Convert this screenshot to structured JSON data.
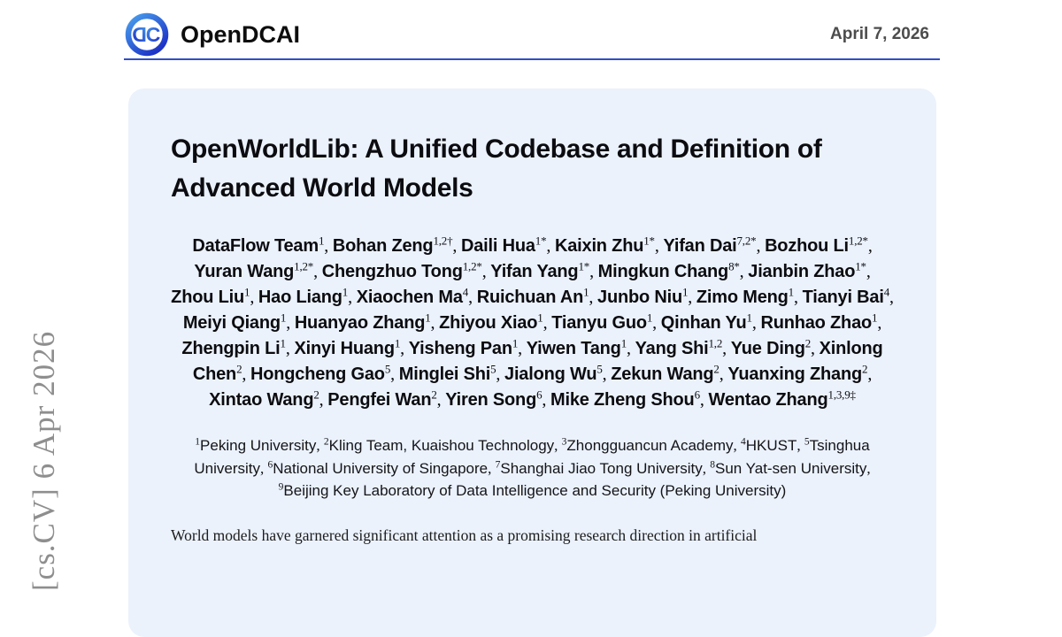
{
  "theme": {
    "accent": "#2f4ec5",
    "card_bg": "#ebf2fc",
    "logo_light": "#4aa0ec",
    "logo_dark": "#1b2ec6",
    "watermark_gray": "#8e8e8e",
    "date_gray": "#4c4c4c",
    "text_dark": "#0d0d10"
  },
  "watermark": {
    "text": "[cs.CV] 6 Apr 2026"
  },
  "header": {
    "brand": "OpenDCAI",
    "logo_icon": "opendcai-dc-circle-logo",
    "date": "April 7, 2026"
  },
  "paper": {
    "title": "OpenWorldLib: A Unified Codebase and Definition of Advanced World Models",
    "authors": [
      {
        "name": "DataFlow Team",
        "sup": "1"
      },
      {
        "name": "Bohan Zeng",
        "sup": "1,2†"
      },
      {
        "name": "Daili Hua",
        "sup": "1*"
      },
      {
        "name": "Kaixin Zhu",
        "sup": "1*"
      },
      {
        "name": "Yifan Dai",
        "sup": "7,2*"
      },
      {
        "name": "Bozhou Li",
        "sup": "1,2*"
      },
      {
        "name": "Yuran Wang",
        "sup": "1,2*"
      },
      {
        "name": "Chengzhuo Tong",
        "sup": "1,2*"
      },
      {
        "name": "Yifan Yang",
        "sup": "1*"
      },
      {
        "name": "Mingkun Chang",
        "sup": "8*"
      },
      {
        "name": "Jianbin Zhao",
        "sup": "1*"
      },
      {
        "name": "Zhou Liu",
        "sup": "1"
      },
      {
        "name": "Hao Liang",
        "sup": "1"
      },
      {
        "name": "Xiaochen Ma",
        "sup": "4"
      },
      {
        "name": "Ruichuan An",
        "sup": "1"
      },
      {
        "name": "Junbo Niu",
        "sup": "1"
      },
      {
        "name": "Zimo Meng",
        "sup": "1"
      },
      {
        "name": "Tianyi Bai",
        "sup": "4"
      },
      {
        "name": "Meiyi Qiang",
        "sup": "1"
      },
      {
        "name": "Huanyao Zhang",
        "sup": "1"
      },
      {
        "name": "Zhiyou Xiao",
        "sup": "1"
      },
      {
        "name": "Tianyu Guo",
        "sup": "1"
      },
      {
        "name": "Qinhan Yu",
        "sup": "1"
      },
      {
        "name": "Runhao Zhao",
        "sup": "1"
      },
      {
        "name": "Zhengpin Li",
        "sup": "1"
      },
      {
        "name": "Xinyi Huang",
        "sup": "1"
      },
      {
        "name": "Yisheng Pan",
        "sup": "1"
      },
      {
        "name": "Yiwen Tang",
        "sup": "1"
      },
      {
        "name": "Yang Shi",
        "sup": "1,2"
      },
      {
        "name": "Yue Ding",
        "sup": "2"
      },
      {
        "name": "Xinlong Chen",
        "sup": "2"
      },
      {
        "name": "Hongcheng Gao",
        "sup": "5"
      },
      {
        "name": "Minglei Shi",
        "sup": "5"
      },
      {
        "name": "Jialong Wu",
        "sup": "5"
      },
      {
        "name": "Zekun Wang",
        "sup": "2"
      },
      {
        "name": "Yuanxing Zhang",
        "sup": "2"
      },
      {
        "name": "Xintao Wang",
        "sup": "2"
      },
      {
        "name": "Pengfei Wan",
        "sup": "2"
      },
      {
        "name": "Yiren Song",
        "sup": "6"
      },
      {
        "name": "Mike Zheng Shou",
        "sup": "6"
      },
      {
        "name": "Wentao Zhang",
        "sup": "1,3,9‡"
      }
    ],
    "affiliations": [
      {
        "sup": "1",
        "name": "Peking University"
      },
      {
        "sup": "2",
        "name": "Kling Team, Kuaishou Technology"
      },
      {
        "sup": "3",
        "name": "Zhongguancun Academy"
      },
      {
        "sup": "4",
        "name": "HKUST"
      },
      {
        "sup": "5",
        "name": "Tsinghua University"
      },
      {
        "sup": "6",
        "name": "National University of Singapore"
      },
      {
        "sup": "7",
        "name": "Shanghai Jiao Tong University"
      },
      {
        "sup": "8",
        "name": "Sun Yat-sen University"
      },
      {
        "sup": "9",
        "name": "Beijing Key Laboratory of Data Intelligence and Security (Peking University)"
      }
    ],
    "abstract": "World models have garnered significant attention as a promising research direction in artificial"
  }
}
